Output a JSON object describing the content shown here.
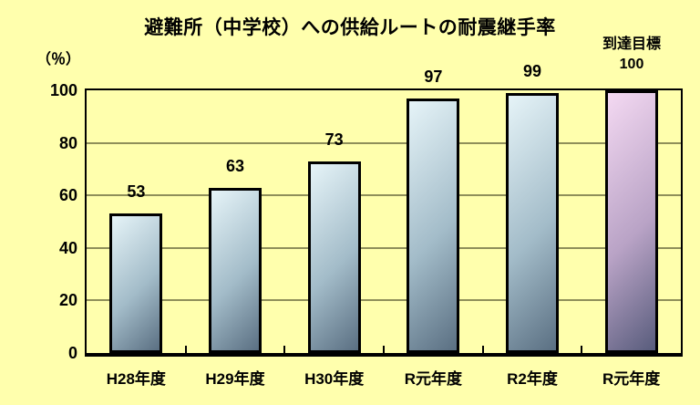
{
  "chart_data": {
    "type": "bar",
    "title": "避難所（中学校）への供給ルートの耐震継手率",
    "unit_label": "（％）",
    "categories": [
      "H28年度",
      "H29年度",
      "H30年度",
      "R元年度",
      "R2年度",
      "R元年度"
    ],
    "values": [
      53,
      63,
      73,
      97,
      99,
      100
    ],
    "target_index": 5,
    "target_label": "到達目標",
    "target_value": "100",
    "ylim": [
      0,
      100
    ],
    "yticks": [
      0,
      20,
      40,
      60,
      80,
      100
    ],
    "grid": true,
    "legend": "none",
    "colors": {
      "background": "#FFFFAD",
      "gridline": "#8F8F5A",
      "bar_border": "#000000",
      "bar_gradient_start": "#E6F4F8",
      "bar_gradient_mid": "#A3BCC9",
      "bar_gradient_end": "#5A6F82",
      "target_gradient_start": "#F4D9F2",
      "target_gradient_mid": "#B9A3C6",
      "target_gradient_end": "#585C7C",
      "text": "#000000"
    }
  }
}
